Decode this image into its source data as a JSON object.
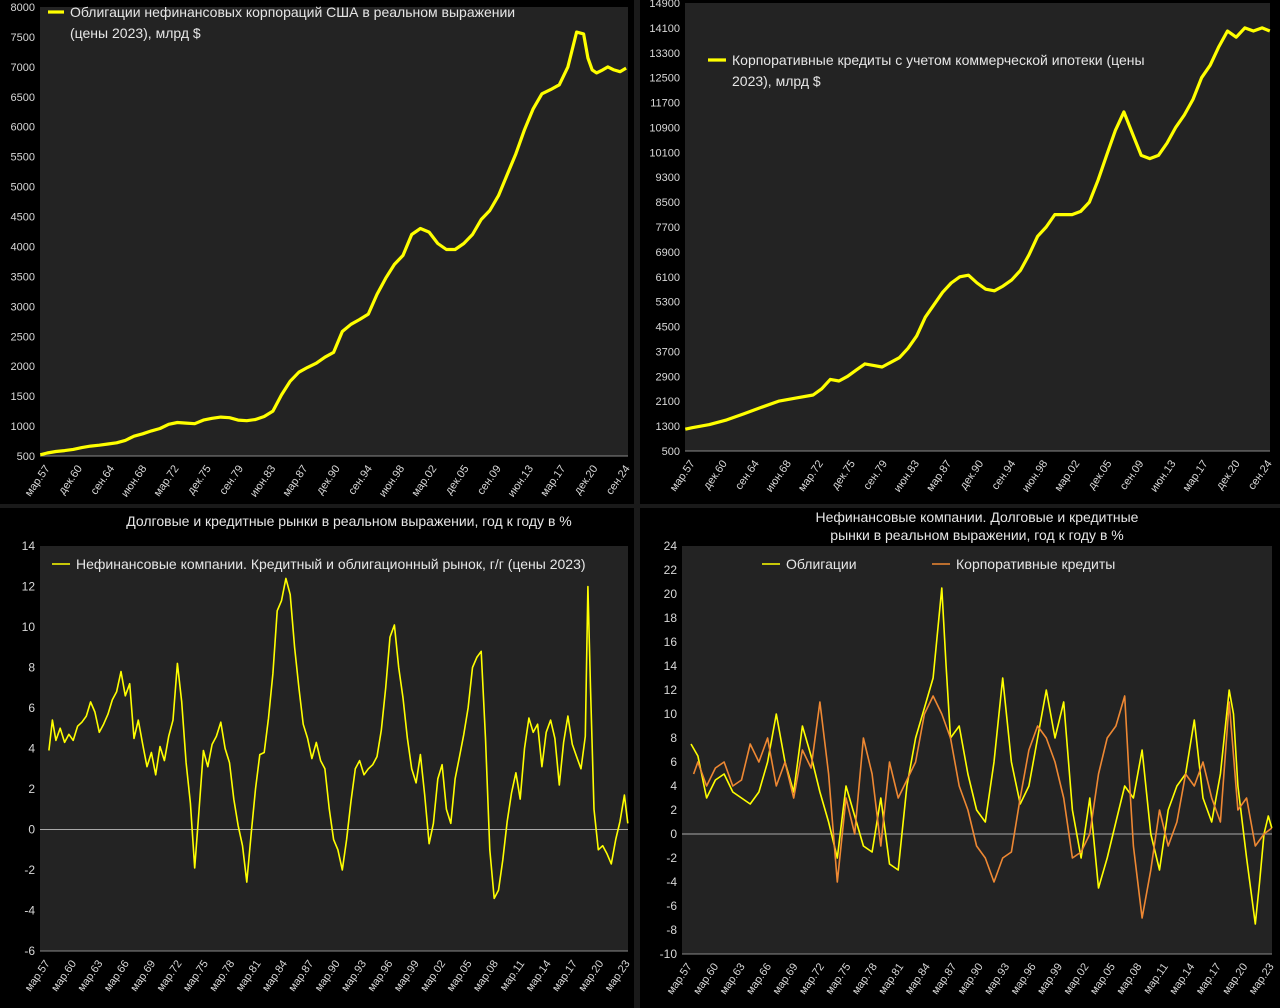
{
  "chart_data": [
    {
      "type": "line",
      "title": "",
      "xlabel": "",
      "ylabel": "",
      "legend_placement": "top-left",
      "grid": false,
      "ylim": [
        500,
        8000
      ],
      "y_ticks": [
        500,
        1000,
        1500,
        2000,
        2500,
        3000,
        3500,
        4000,
        4500,
        5000,
        5500,
        6000,
        6500,
        7000,
        7500,
        8000
      ],
      "x_range": [
        1957.17,
        2024.92
      ],
      "x_tick_labels": [
        "мар.57",
        "дек.60",
        "сен.64",
        "июн.68",
        "мар.72",
        "дек.75",
        "сен.79",
        "июн.83",
        "мар.87",
        "дек.90",
        "сен.94",
        "июн.98",
        "мар.02",
        "дек.05",
        "сен.09",
        "июн.13",
        "мар.17",
        "дек.20",
        "сен.24"
      ],
      "series": [
        {
          "name": "Облигации нефинансовых корпораций США в реальном выражении (цены 2023), млрд $",
          "color": "#ffff00",
          "x": [
            1957.2,
            1958,
            1959,
            1960,
            1961,
            1962,
            1963,
            1964,
            1965,
            1966,
            1967,
            1968,
            1969,
            1970,
            1971,
            1972,
            1973,
            1974,
            1975,
            1976,
            1977,
            1978,
            1979,
            1980,
            1981,
            1982,
            1983,
            1984,
            1985,
            1986,
            1987,
            1988,
            1989,
            1990,
            1991,
            1992,
            1993,
            1994,
            1995,
            1996,
            1997,
            1998,
            1999,
            2000,
            2001,
            2002,
            2003,
            2004,
            2005,
            2006,
            2007,
            2008,
            2009,
            2010,
            2011,
            2012,
            2013,
            2014,
            2015,
            2016,
            2017,
            2018,
            2019,
            2019.8,
            2020.3,
            2020.8,
            2021.3,
            2022,
            2022.6,
            2023.3,
            2024,
            2024.7
          ],
          "values": [
            520,
            550,
            575,
            590,
            610,
            640,
            665,
            680,
            700,
            720,
            760,
            830,
            870,
            920,
            960,
            1030,
            1060,
            1050,
            1040,
            1100,
            1130,
            1150,
            1140,
            1100,
            1090,
            1110,
            1160,
            1250,
            1520,
            1750,
            1900,
            1980,
            2050,
            2150,
            2230,
            2580,
            2700,
            2780,
            2870,
            3200,
            3470,
            3700,
            3850,
            4200,
            4300,
            4240,
            4050,
            3950,
            3950,
            4050,
            4200,
            4450,
            4600,
            4850,
            5200,
            5550,
            5950,
            6300,
            6550,
            6620,
            6700,
            7000,
            7580,
            7550,
            7150,
            6950,
            6900,
            6950,
            7000,
            6950,
            6920,
            6980
          ]
        }
      ]
    },
    {
      "type": "line",
      "title": "",
      "xlabel": "",
      "ylabel": "",
      "legend_placement": "top-left",
      "grid": false,
      "ylim": [
        500,
        14900
      ],
      "y_ticks": [
        500,
        1300,
        2100,
        2900,
        3700,
        4500,
        5300,
        6100,
        6900,
        7700,
        8500,
        9300,
        10100,
        10900,
        11700,
        12500,
        13300,
        14100,
        14900
      ],
      "x_range": [
        1957.17,
        2024.92
      ],
      "x_tick_labels": [
        "мар.57",
        "дек.60",
        "сен.64",
        "июн.68",
        "мар.72",
        "дек.75",
        "сен.79",
        "июн.83",
        "мар.87",
        "дек.90",
        "сен.94",
        "июн.98",
        "мар.02",
        "дек.05",
        "сен.09",
        "июн.13",
        "мар.17",
        "дек.20",
        "сен.24"
      ],
      "series": [
        {
          "name": "Корпоративные кредиты с учетом коммерческой ипотеки (цены 2023), млрд $",
          "color": "#ffff00",
          "x": [
            1957.2,
            1958,
            1960,
            1962,
            1964,
            1966,
            1968,
            1970,
            1972,
            1973,
            1974,
            1975,
            1976,
            1977,
            1978,
            1979,
            1980,
            1981,
            1982,
            1983,
            1984,
            1985,
            1986,
            1987,
            1988,
            1989,
            1990,
            1991,
            1992,
            1993,
            1994,
            1995,
            1996,
            1997,
            1998,
            1999,
            2000,
            2001,
            2002,
            2003,
            2004,
            2005,
            2006,
            2007,
            2008,
            2009,
            2010,
            2011,
            2012,
            2013,
            2014,
            2015,
            2016,
            2017,
            2018,
            2019,
            2020,
            2020.5,
            2021,
            2022,
            2023,
            2024,
            2024.9
          ],
          "values": [
            1200,
            1250,
            1350,
            1500,
            1700,
            1900,
            2100,
            2200,
            2300,
            2500,
            2800,
            2750,
            2900,
            3100,
            3300,
            3250,
            3200,
            3350,
            3500,
            3800,
            4200,
            4800,
            5200,
            5600,
            5900,
            6100,
            6150,
            5900,
            5700,
            5650,
            5800,
            6000,
            6300,
            6800,
            7400,
            7700,
            8100,
            8100,
            8100,
            8200,
            8500,
            9200,
            10000,
            10800,
            11400,
            10700,
            10000,
            9900,
            10000,
            10400,
            10900,
            11300,
            11800,
            12500,
            12900,
            13500,
            14000,
            13900,
            13800,
            14100,
            14000,
            14100,
            14000
          ]
        }
      ]
    },
    {
      "type": "line",
      "title": "Долговые и кредитные рынки в реальном выражении, год к году в %",
      "xlabel": "",
      "ylabel": "",
      "legend_placement": "top",
      "grid": false,
      "ylim": [
        -6,
        14
      ],
      "y_ticks": [
        -6,
        -4,
        -2,
        0,
        2,
        4,
        6,
        8,
        10,
        12,
        14
      ],
      "x_range": [
        1957.17,
        2024.92
      ],
      "x_tick_labels": [
        "мар.57",
        "мар.60",
        "мар.63",
        "мар.66",
        "мар.69",
        "мар.72",
        "мар.75",
        "мар.78",
        "мар.81",
        "мар.84",
        "мар.87",
        "мар.90",
        "мар.93",
        "мар.96",
        "мар.99",
        "мар.02",
        "мар.05",
        "мар.08",
        "мар.11",
        "мар.14",
        "мар.17",
        "мар.20",
        "мар.23"
      ],
      "series": [
        {
          "name": "Нефинансовые компании. Кредитный и облигационный рынок, г/г (цены 2023)",
          "color": "#ffff00",
          "x": [
            1958.2,
            1958.6,
            1959,
            1959.5,
            1960,
            1960.5,
            1961,
            1961.5,
            1962,
            1962.5,
            1963,
            1963.5,
            1964,
            1964.5,
            1965,
            1965.5,
            1966,
            1966.5,
            1967,
            1967.5,
            1968,
            1968.5,
            1969,
            1969.5,
            1970,
            1970.5,
            1971,
            1971.5,
            1972,
            1972.5,
            1973,
            1973.5,
            1974,
            1974.5,
            1975,
            1975.5,
            1976,
            1976.5,
            1977,
            1977.5,
            1978,
            1978.5,
            1979,
            1979.5,
            1980,
            1980.5,
            1981,
            1981.5,
            1982,
            1982.5,
            1983,
            1983.5,
            1984,
            1984.5,
            1985,
            1985.5,
            1986,
            1986.5,
            1987,
            1987.5,
            1988,
            1988.5,
            1989,
            1989.5,
            1990,
            1990.5,
            1991,
            1991.5,
            1992,
            1992.5,
            1993,
            1993.5,
            1994,
            1994.5,
            1995,
            1995.5,
            1996,
            1996.5,
            1997,
            1997.5,
            1998,
            1998.5,
            1999,
            1999.5,
            2000,
            2000.5,
            2001,
            2001.5,
            2002,
            2002.5,
            2003,
            2003.5,
            2004,
            2004.5,
            2005,
            2005.5,
            2006,
            2006.5,
            2007,
            2007.5,
            2008,
            2008.5,
            2009,
            2009.5,
            2010,
            2010.5,
            2011,
            2011.5,
            2012,
            2012.5,
            2013,
            2013.5,
            2014,
            2014.5,
            2015,
            2015.5,
            2016,
            2016.5,
            2017,
            2017.5,
            2018,
            2018.5,
            2019,
            2019.5,
            2020,
            2020.3,
            2020.6,
            2021,
            2021.5,
            2022,
            2022.5,
            2023,
            2023.5,
            2024,
            2024.5,
            2024.9
          ],
          "values": [
            3.9,
            5.4,
            4.4,
            5.0,
            4.3,
            4.7,
            4.4,
            5.1,
            5.3,
            5.6,
            6.3,
            5.8,
            4.8,
            5.2,
            5.7,
            6.4,
            6.8,
            7.8,
            6.6,
            7.2,
            4.5,
            5.4,
            4.2,
            3.1,
            3.8,
            2.7,
            4.1,
            3.4,
            4.6,
            5.4,
            8.2,
            6.3,
            3.3,
            1.3,
            -1.9,
            1.0,
            3.9,
            3.1,
            4.2,
            4.6,
            5.3,
            4.0,
            3.3,
            1.5,
            0.2,
            -0.8,
            -2.6,
            -0.2,
            2.0,
            3.7,
            3.8,
            5.5,
            7.7,
            10.8,
            11.3,
            12.4,
            11.6,
            9.0,
            7.0,
            5.2,
            4.5,
            3.5,
            4.3,
            3.4,
            3.0,
            1.0,
            -0.5,
            -1.0,
            -2.0,
            -0.5,
            1.4,
            3.0,
            3.4,
            2.7,
            3.0,
            3.2,
            3.6,
            4.9,
            7.0,
            9.5,
            10.1,
            8.0,
            6.5,
            4.5,
            3.0,
            2.3,
            3.7,
            1.7,
            -0.7,
            0.3,
            2.5,
            3.2,
            1.0,
            0.3,
            2.5,
            3.6,
            4.7,
            6.0,
            8.0,
            8.5,
            8.8,
            4.5,
            -1.0,
            -3.4,
            -3.0,
            -1.5,
            0.4,
            1.8,
            2.8,
            1.5,
            4.0,
            5.5,
            4.8,
            5.2,
            3.1,
            4.8,
            5.4,
            4.5,
            2.2,
            4.3,
            5.6,
            4.2,
            3.6,
            3.0,
            4.6,
            12.0,
            7.0,
            1.0,
            -1.0,
            -0.8,
            -1.2,
            -1.7,
            -0.5,
            0.4,
            1.7,
            0.3
          ]
        }
      ]
    },
    {
      "type": "line",
      "title": "Нефинансовые компании. Долговые и кредитные рынки в реальном выражении, год к году в %",
      "xlabel": "",
      "ylabel": "",
      "legend_placement": "top",
      "grid": false,
      "ylim": [
        -10,
        24
      ],
      "y_ticks": [
        -10,
        -8,
        -6,
        -4,
        -2,
        0,
        2,
        4,
        6,
        8,
        10,
        12,
        14,
        16,
        18,
        20,
        22,
        24
      ],
      "x_range": [
        1957.17,
        2024.92
      ],
      "x_tick_labels": [
        "мар.57",
        "мар.60",
        "мар.63",
        "мар.66",
        "мар.69",
        "мар.72",
        "мар.75",
        "мар.78",
        "мар.81",
        "мар.84",
        "мар.87",
        "мар.90",
        "мар.93",
        "мар.96",
        "мар.99",
        "мар.02",
        "мар.05",
        "мар.08",
        "мар.11",
        "мар.14",
        "мар.17",
        "мар.20",
        "мар.23"
      ],
      "series": [
        {
          "name": "Облигации",
          "color": "#ffff00",
          "x": [
            1958.2,
            1959,
            1960,
            1961,
            1962,
            1963,
            1964,
            1965,
            1966,
            1967,
            1968,
            1969,
            1970,
            1971,
            1972,
            1973,
            1974,
            1975,
            1976,
            1977,
            1978,
            1979,
            1980,
            1981,
            1982,
            1983,
            1984,
            1985,
            1986,
            1987,
            1987.5,
            1988,
            1989,
            1990,
            1991,
            1992,
            1993,
            1994,
            1995,
            1996,
            1997,
            1998,
            1999,
            2000,
            2001,
            2002,
            2003,
            2004,
            2005,
            2006,
            2007,
            2008,
            2009,
            2010,
            2011,
            2012,
            2013,
            2014,
            2015,
            2016,
            2017,
            2018,
            2019,
            2020,
            2020.5,
            2021,
            2022,
            2023,
            2023.5,
            2024,
            2024.5,
            2024.9
          ],
          "values": [
            7.5,
            6.5,
            3.0,
            4.5,
            5.0,
            3.5,
            3.0,
            2.5,
            3.5,
            6.0,
            10.0,
            6.0,
            3.5,
            9.0,
            6.5,
            3.5,
            1.0,
            -2.0,
            4.0,
            1.5,
            -1.0,
            -1.5,
            3.0,
            -2.5,
            -3.0,
            4.0,
            8.0,
            10.5,
            13.0,
            20.5,
            14.0,
            8.0,
            9.0,
            5.0,
            2.0,
            1.0,
            6.0,
            13.0,
            6.0,
            2.5,
            4.0,
            8.0,
            12.0,
            8.0,
            11.0,
            2.0,
            -2.0,
            3.0,
            -4.5,
            -2.0,
            1.0,
            4.0,
            3.0,
            7.0,
            0.0,
            -3.0,
            2.0,
            4.0,
            5.0,
            9.5,
            3.0,
            1.0,
            5.0,
            12.0,
            10.0,
            4.0,
            -2.0,
            -7.5,
            -4.0,
            0.0,
            1.5,
            0.5
          ]
        },
        {
          "name": "Корпоративные кредиты",
          "color": "#ee8833",
          "x": [
            1958.5,
            1959,
            1960,
            1961,
            1962,
            1963,
            1964,
            1965,
            1966,
            1967,
            1968,
            1969,
            1970,
            1971,
            1972,
            1973,
            1974,
            1975,
            1976,
            1977,
            1978,
            1979,
            1980,
            1981,
            1982,
            1983,
            1984,
            1985,
            1986,
            1987,
            1988,
            1989,
            1990,
            1991,
            1992,
            1993,
            1994,
            1995,
            1996,
            1997,
            1998,
            1999,
            2000,
            2001,
            2002,
            2003,
            2004,
            2005,
            2006,
            2007,
            2008,
            2008.5,
            2009,
            2010,
            2011,
            2012,
            2013,
            2014,
            2015,
            2016,
            2017,
            2018,
            2019,
            2020,
            2021,
            2022,
            2023,
            2024,
            2024.9
          ],
          "values": [
            5.0,
            6.0,
            4.0,
            5.5,
            6.0,
            4.0,
            4.5,
            7.5,
            6.0,
            8.0,
            4.0,
            6.0,
            3.0,
            7.0,
            5.5,
            11.0,
            5.0,
            -4.0,
            3.0,
            0.0,
            8.0,
            5.0,
            -1.0,
            6.0,
            3.0,
            4.5,
            6.0,
            10.0,
            11.5,
            10.0,
            8.0,
            4.0,
            2.0,
            -1.0,
            -2.0,
            -4.0,
            -2.0,
            -1.5,
            3.0,
            7.0,
            9.0,
            8.0,
            6.0,
            3.0,
            -2.0,
            -1.5,
            0.0,
            5.0,
            8.0,
            9.0,
            11.5,
            5.0,
            -1.0,
            -7.0,
            -3.0,
            2.0,
            -1.0,
            1.0,
            5.0,
            4.0,
            6.0,
            3.0,
            1.0,
            11.0,
            2.0,
            3.0,
            -1.0,
            0.0,
            0.5
          ]
        }
      ]
    }
  ]
}
